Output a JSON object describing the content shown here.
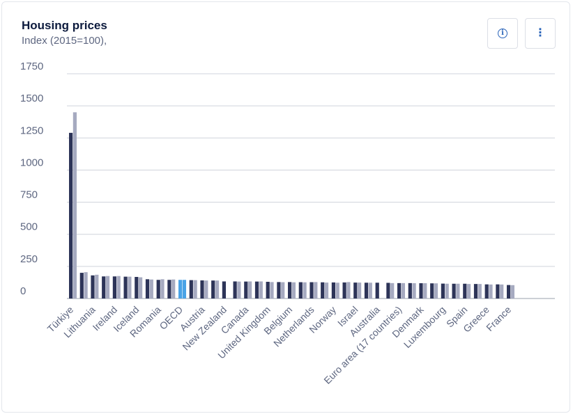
{
  "header": {
    "title": "Housing prices",
    "subtitle": "Index (2015=100),",
    "info_icon": "info-icon",
    "more_icon": "more-vertical-icon"
  },
  "colors": {
    "series_a": "#2d3458",
    "series_b": "#a6aac0",
    "highlight": "#4aa3e6",
    "grid": "#cfd3dc"
  },
  "chart_data": {
    "type": "bar",
    "title": "Housing prices",
    "subtitle": "Index (2015=100),",
    "ylim": [
      0,
      1750
    ],
    "yticks": [
      0,
      250,
      500,
      750,
      1000,
      1250,
      1500,
      1750
    ],
    "grid": true,
    "highlight_category": "OECD",
    "categories": [
      "Türkiye",
      "",
      "Lithuania",
      "",
      "Ireland",
      "",
      "Iceland",
      "",
      "Romania",
      "",
      "OECD",
      "",
      "Austria",
      "",
      "New Zealand",
      "",
      "Canada",
      "",
      "United Kingdom",
      "",
      "Belgium",
      "",
      "Netherlands",
      "",
      "Norway",
      "",
      "Israel",
      "",
      "Australia",
      "",
      "Euro area (17 countries)",
      "",
      "Denmark",
      "",
      "Luxembourg",
      "",
      "Spain",
      "",
      "Greece",
      "",
      "France"
    ],
    "series": [
      {
        "values": [
          1290,
          200,
          180,
          172,
          172,
          170,
          168,
          150,
          145,
          145,
          145,
          143,
          141,
          140,
          133,
          133,
          132,
          132,
          130,
          128,
          128,
          127,
          127,
          126,
          125,
          125,
          124,
          123,
          123,
          122,
          120,
          120,
          119,
          118,
          116,
          115,
          115,
          113,
          110,
          110,
          105
        ]
      },
      {
        "values": [
          1450,
          205,
          185,
          175,
          175,
          170,
          165,
          148,
          150,
          148,
          145,
          143,
          140,
          140,
          0,
          132,
          133,
          133,
          128,
          127,
          126,
          126,
          128,
          124,
          123,
          128,
          124,
          123,
          0,
          120,
          120,
          119,
          119,
          118,
          115,
          115,
          113,
          113,
          109,
          109,
          104
        ]
      }
    ]
  }
}
